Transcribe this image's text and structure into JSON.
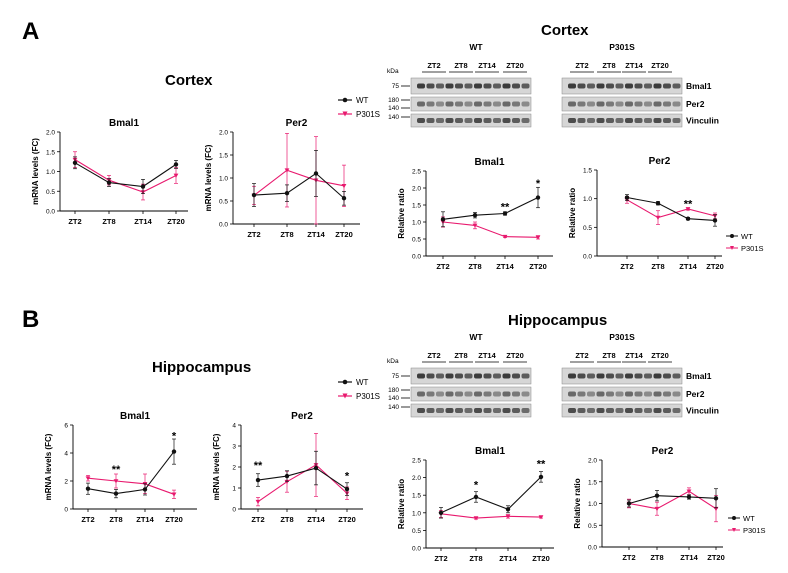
{
  "panels": {
    "A": {
      "letter": "A",
      "qpcr_title": "Cortex",
      "wb_title": "Cortex",
      "legend": {
        "wt": "WT",
        "p301s": "P301S"
      },
      "blot": {
        "kda": "kDa",
        "group_labels": [
          "WT",
          "P301S"
        ],
        "zt_labels": [
          "ZT2",
          "ZT8",
          "ZT14",
          "ZT20",
          "ZT2",
          "ZT8",
          "ZT14",
          "ZT20"
        ],
        "markers": [
          "75",
          "180",
          "140",
          "140"
        ],
        "protein_labels": [
          "Bmal1",
          "Per2",
          "Vinculin"
        ]
      }
    },
    "B": {
      "letter": "B",
      "qpcr_title": "Hippocampus",
      "wb_title": "Hippocampus",
      "legend": {
        "wt": "WT",
        "p301s": "P301S"
      },
      "blot": {
        "kda": "kDa",
        "group_labels": [
          "WT",
          "P301S"
        ],
        "zt_labels": [
          "ZT2",
          "ZT8",
          "ZT14",
          "ZT20",
          "ZT2",
          "ZT8",
          "ZT14",
          "ZT20"
        ],
        "markers": [
          "75",
          "180",
          "140",
          "140"
        ],
        "protein_labels": [
          "Bmal1",
          "Per2",
          "Vinculin"
        ]
      }
    }
  },
  "colors": {
    "wt": "#111111",
    "p301s": "#e8196e"
  },
  "chart_data": [
    {
      "id": "A1",
      "type": "line",
      "title": "Bmal1",
      "ylabel": "mRNA levels (FC)",
      "ylim": [
        0,
        2
      ],
      "yticks": [
        0,
        0.5,
        1,
        1.5,
        2
      ],
      "ytick_labels": [
        "0.0",
        "0.5",
        "1.0",
        "1.5",
        "2.0"
      ],
      "categories": [
        "ZT2",
        "ZT8",
        "ZT14",
        "ZT20"
      ],
      "series": [
        {
          "name": "WT",
          "values": [
            1.22,
            0.72,
            0.62,
            1.18
          ],
          "errors": [
            0.15,
            0.1,
            0.18,
            0.1
          ]
        },
        {
          "name": "P301S",
          "values": [
            1.3,
            0.78,
            0.48,
            0.9
          ],
          "errors": [
            0.2,
            0.12,
            0.2,
            0.2
          ]
        }
      ],
      "annotations": []
    },
    {
      "id": "A2",
      "type": "line",
      "title": "Per2",
      "ylabel": "mRNA levels (FC)",
      "ylim": [
        0,
        2
      ],
      "yticks": [
        0,
        0.5,
        1,
        1.5,
        2
      ],
      "ytick_labels": [
        "0.0",
        "0.5",
        "1.0",
        "1.5",
        "2.0"
      ],
      "categories": [
        "ZT2",
        "ZT8",
        "ZT14",
        "ZT20"
      ],
      "series": [
        {
          "name": "WT",
          "values": [
            0.63,
            0.67,
            1.1,
            0.56
          ],
          "errors": [
            0.25,
            0.18,
            0.5,
            0.15
          ]
        },
        {
          "name": "P301S",
          "values": [
            0.62,
            1.17,
            0.95,
            0.83
          ],
          "errors": [
            0.2,
            0.8,
            0.95,
            0.45
          ]
        }
      ],
      "annotations": []
    },
    {
      "id": "A3",
      "type": "line",
      "title": "Bmal1",
      "ylabel": "Relative ratio",
      "ylim": [
        0,
        2.5
      ],
      "yticks": [
        0,
        0.5,
        1,
        1.5,
        2,
        2.5
      ],
      "ytick_labels": [
        "0.0",
        "0.5",
        "1.0",
        "1.5",
        "2.0",
        "2.5"
      ],
      "categories": [
        "ZT2",
        "ZT8",
        "ZT14",
        "ZT20"
      ],
      "series": [
        {
          "name": "WT",
          "values": [
            1.08,
            1.2,
            1.25,
            1.72
          ],
          "errors": [
            0.22,
            0.08,
            0.05,
            0.3
          ]
        },
        {
          "name": "P301S",
          "values": [
            1.0,
            0.9,
            0.57,
            0.55
          ],
          "errors": [
            0.15,
            0.1,
            0.03,
            0.05
          ]
        }
      ],
      "annotations": [
        {
          "category": "ZT14",
          "text": "**",
          "y": 1.45
        },
        {
          "category": "ZT20",
          "text": "*",
          "y": 2.15
        }
      ]
    },
    {
      "id": "A4",
      "type": "line",
      "title": "Per2",
      "ylabel": "Relative ratio",
      "ylim": [
        0,
        1.5
      ],
      "yticks": [
        0,
        0.5,
        1,
        1.5
      ],
      "ytick_labels": [
        "0.0",
        "0.5",
        "1.0",
        "1.5"
      ],
      "categories": [
        "ZT2",
        "ZT8",
        "ZT14",
        "ZT20"
      ],
      "series": [
        {
          "name": "WT",
          "values": [
            1.02,
            0.92,
            0.65,
            0.62
          ],
          "errors": [
            0.05,
            0.03,
            0.02,
            0.1
          ]
        },
        {
          "name": "P301S",
          "values": [
            0.98,
            0.67,
            0.82,
            0.7
          ],
          "errors": [
            0.06,
            0.12,
            0.02,
            0.05
          ]
        }
      ],
      "annotations": [
        {
          "category": "ZT14",
          "text": "**",
          "y": 0.92
        }
      ]
    },
    {
      "id": "B1",
      "type": "line",
      "title": "Bmal1",
      "ylabel": "mRNA levels (FC)",
      "ylim": [
        0,
        6
      ],
      "yticks": [
        0,
        2,
        4,
        6
      ],
      "ytick_labels": [
        "0",
        "2",
        "4",
        "6"
      ],
      "categories": [
        "ZT2",
        "ZT8",
        "ZT14",
        "ZT20"
      ],
      "series": [
        {
          "name": "WT",
          "values": [
            1.45,
            1.1,
            1.4,
            4.1
          ],
          "errors": [
            0.4,
            0.3,
            0.4,
            0.9
          ]
        },
        {
          "name": "P301S",
          "values": [
            2.2,
            2.0,
            1.8,
            1.05
          ],
          "errors": [
            0.2,
            0.5,
            0.7,
            0.3
          ]
        }
      ],
      "annotations": [
        {
          "category": "ZT8",
          "text": "**",
          "y": 2.85
        },
        {
          "category": "ZT20",
          "text": "*",
          "y": 5.25
        }
      ]
    },
    {
      "id": "B2",
      "type": "line",
      "title": "Per2",
      "ylabel": "mRNA levels (FC)",
      "ylim": [
        0,
        4
      ],
      "yticks": [
        0,
        1,
        2,
        3,
        4
      ],
      "ytick_labels": [
        "0",
        "1",
        "2",
        "3",
        "4"
      ],
      "categories": [
        "ZT2",
        "ZT8",
        "ZT14",
        "ZT20"
      ],
      "series": [
        {
          "name": "WT",
          "values": [
            1.38,
            1.57,
            1.95,
            0.95
          ],
          "errors": [
            0.3,
            0.25,
            0.8,
            0.3
          ]
        },
        {
          "name": "P301S",
          "values": [
            0.35,
            1.3,
            2.1,
            0.75
          ],
          "errors": [
            0.2,
            0.5,
            1.5,
            0.3
          ]
        }
      ],
      "annotations": [
        {
          "category": "ZT2",
          "text": "**",
          "y": 2.1
        },
        {
          "category": "ZT20",
          "text": "*",
          "y": 1.6
        }
      ]
    },
    {
      "id": "B3",
      "type": "line",
      "title": "Bmal1",
      "ylabel": "Relative ratio",
      "ylim": [
        0,
        2.5
      ],
      "yticks": [
        0,
        0.5,
        1,
        1.5,
        2,
        2.5
      ],
      "ytick_labels": [
        "0.0",
        "0.5",
        "1.0",
        "1.5",
        "2.0",
        "2.5"
      ],
      "categories": [
        "ZT2",
        "ZT8",
        "ZT14",
        "ZT20"
      ],
      "series": [
        {
          "name": "WT",
          "values": [
            1.0,
            1.45,
            1.1,
            2.02
          ],
          "errors": [
            0.15,
            0.15,
            0.1,
            0.15
          ]
        },
        {
          "name": "P301S",
          "values": [
            0.97,
            0.85,
            0.9,
            0.88
          ],
          "errors": [
            0.1,
            0.03,
            0.05,
            0.03
          ]
        }
      ],
      "annotations": [
        {
          "category": "ZT8",
          "text": "*",
          "y": 1.8
        },
        {
          "category": "ZT20",
          "text": "**",
          "y": 2.4
        }
      ]
    },
    {
      "id": "B4",
      "type": "line",
      "title": "Per2",
      "ylabel": "Relative ratio",
      "ylim": [
        0,
        2
      ],
      "yticks": [
        0,
        0.5,
        1,
        1.5,
        2
      ],
      "ytick_labels": [
        "0.0",
        "0.5",
        "1.0",
        "1.5",
        "2.0"
      ],
      "categories": [
        "ZT2",
        "ZT8",
        "ZT14",
        "ZT20"
      ],
      "series": [
        {
          "name": "WT",
          "values": [
            1.0,
            1.18,
            1.15,
            1.12
          ],
          "errors": [
            0.08,
            0.12,
            0.05,
            0.22
          ]
        },
        {
          "name": "P301S",
          "values": [
            1.0,
            0.88,
            1.28,
            0.88
          ],
          "errors": [
            0.1,
            0.15,
            0.08,
            0.3
          ]
        }
      ],
      "annotations": []
    }
  ]
}
